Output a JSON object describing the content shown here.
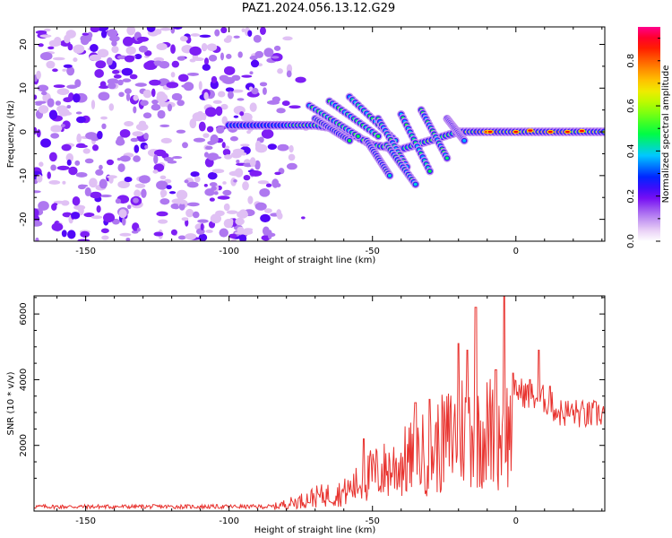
{
  "title": "PAZ1.2024.056.13.12.G29",
  "chart_data": [
    {
      "type": "heatmap",
      "xlabel": "Height of straight line (km)",
      "ylabel": "Frequency (Hz)",
      "xlim": [
        -168,
        31
      ],
      "ylim": [
        -25,
        24
      ],
      "xticks": [
        -150,
        -100,
        -50,
        0
      ],
      "yticks": [
        -20,
        -10,
        0,
        10,
        20
      ],
      "colorbar": {
        "label": "Normalized spectral amplitude",
        "range": [
          0,
          0.95
        ],
        "ticks": [
          0.0,
          0.2,
          0.4,
          0.6,
          0.8
        ]
      },
      "features": {
        "noise_region_km": [
          -168,
          -80
        ],
        "signal_track_hz_by_height": [
          {
            "x": -100,
            "f": 1.5
          },
          {
            "x": -80,
            "f": 1.5
          },
          {
            "x": -70,
            "f": 1.5
          },
          {
            "x": -60,
            "f": 0.5
          },
          {
            "x": -50,
            "f": -3
          },
          {
            "x": -40,
            "f": -4
          },
          {
            "x": -30,
            "f": -2
          },
          {
            "x": -20,
            "f": 0
          },
          {
            "x": -10,
            "f": 0
          },
          {
            "x": 0,
            "f": 0
          },
          {
            "x": 30,
            "f": 0
          }
        ]
      }
    },
    {
      "type": "line",
      "xlabel": "Height of straight line (km)",
      "ylabel": "SNR (10 * v/v)",
      "xlim": [
        -168,
        31
      ],
      "ylim": [
        0,
        6550
      ],
      "xticks": [
        -150,
        -100,
        -50,
        0
      ],
      "yticks": [
        2000,
        4000,
        6000
      ],
      "color": "#e8332f",
      "envelope": [
        {
          "x": -168,
          "y": 150
        },
        {
          "x": -140,
          "y": 150
        },
        {
          "x": -110,
          "y": 160
        },
        {
          "x": -85,
          "y": 200
        },
        {
          "x": -75,
          "y": 500
        },
        {
          "x": -70,
          "y": 700
        },
        {
          "x": -60,
          "y": 900
        },
        {
          "x": -55,
          "y": 1300
        },
        {
          "x": -50,
          "y": 1800
        },
        {
          "x": -45,
          "y": 2000
        },
        {
          "x": -40,
          "y": 2300
        },
        {
          "x": -35,
          "y": 2600
        },
        {
          "x": -30,
          "y": 2900
        },
        {
          "x": -25,
          "y": 3300
        },
        {
          "x": -20,
          "y": 3900
        },
        {
          "x": -15,
          "y": 4200
        },
        {
          "x": -10,
          "y": 3800
        },
        {
          "x": -5,
          "y": 3900
        },
        {
          "x": 0,
          "y": 3700
        },
        {
          "x": 5,
          "y": 3500
        },
        {
          "x": 10,
          "y": 3400
        },
        {
          "x": 15,
          "y": 3000
        },
        {
          "x": 20,
          "y": 3000
        },
        {
          "x": 25,
          "y": 2900
        },
        {
          "x": 31,
          "y": 3000
        }
      ],
      "peaks": [
        {
          "x": -53,
          "y": 2200
        },
        {
          "x": -35,
          "y": 3300
        },
        {
          "x": -30,
          "y": 3400
        },
        {
          "x": -20,
          "y": 5100
        },
        {
          "x": -17,
          "y": 4900
        },
        {
          "x": -14,
          "y": 6200
        },
        {
          "x": -7,
          "y": 4300
        },
        {
          "x": -4,
          "y": 6550
        },
        {
          "x": -1,
          "y": 4200
        },
        {
          "x": 5,
          "y": 4000
        },
        {
          "x": 8,
          "y": 4900
        },
        {
          "x": 12,
          "y": 3800
        }
      ]
    }
  ]
}
